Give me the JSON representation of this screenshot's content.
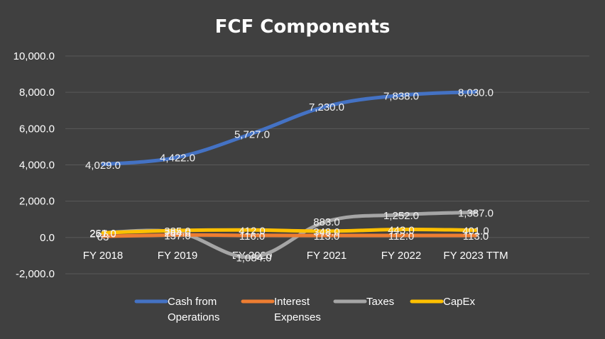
{
  "chart_data": {
    "type": "line",
    "title": "FCF Components",
    "categories": [
      "FY 2018",
      "FY 2019",
      "FY 2020",
      "FY 2021",
      "FY 2022",
      "FY 2023 TTM"
    ],
    "ylim": [
      -2000,
      10000
    ],
    "ytick_labels": [
      "10,000.0",
      "8,000.0",
      "6,000.0",
      "4,000.0",
      "2,000.0",
      "0.0",
      "-2,000.0"
    ],
    "ytick_values": [
      10000,
      8000,
      6000,
      4000,
      2000,
      0,
      -2000
    ],
    "grid": true,
    "legend_position": "bottom",
    "series": [
      {
        "name": "Cash from Operations",
        "legend_lines": [
          "Cash from",
          "Operations"
        ],
        "color": "#4472c4",
        "values": [
          4029,
          4422,
          5727,
          7230,
          7838,
          8030
        ],
        "labels": [
          "4,029.0",
          "4,422.0",
          "5,727.0",
          "7,230.0",
          "7,838.0",
          "8,030.0"
        ]
      },
      {
        "name": "Interest Expenses",
        "legend_lines": [
          "Interest",
          "Expenses"
        ],
        "color": "#ed7d31",
        "values": [
          63,
          137,
          116,
          113,
          112,
          113
        ],
        "labels": [
          "63",
          "137.0",
          "116.0",
          "113.0",
          "112.0",
          "113.0"
        ]
      },
      {
        "name": "Taxes",
        "legend_lines": [
          "Taxes"
        ],
        "color": "#a5a5a5",
        "values": [
          261,
          284,
          -1084,
          883,
          1252,
          1387
        ],
        "labels": [
          "261.0",
          "284.0",
          "-1,084.0",
          "883.0",
          "1,252.0",
          "1,387.0"
        ]
      },
      {
        "name": "CapEx",
        "legend_lines": [
          "CapEx"
        ],
        "color": "#ffc000",
        "values": [
          257,
          385,
          412,
          348,
          443,
          401
        ],
        "labels": [
          "257.0",
          "385.0",
          "412.0",
          "348.0",
          "443.0",
          "401.0"
        ]
      }
    ]
  }
}
